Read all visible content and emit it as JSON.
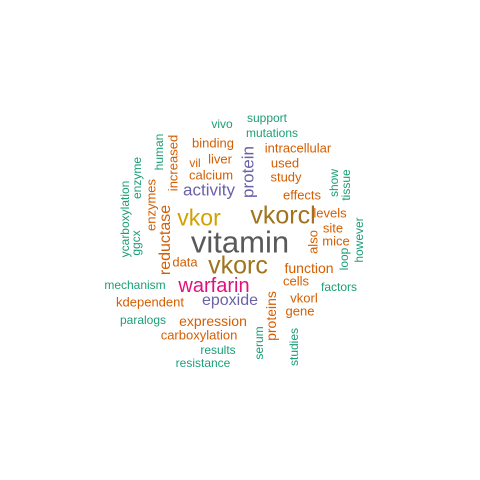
{
  "colors": {
    "gray": "#595959",
    "gold": "#D4A000",
    "brown": "#A0741C",
    "magenta": "#E0117A",
    "purple": "#6A62A8",
    "orange": "#D55E00",
    "green": "#1B9E77"
  },
  "words": [
    {
      "text": "vitamin",
      "color": "gray"
    },
    {
      "text": "vkorcl",
      "color": "brown"
    },
    {
      "text": "vkor",
      "color": "gold"
    },
    {
      "text": "vkorc",
      "color": "brown"
    },
    {
      "text": "warfarin",
      "color": "magenta"
    },
    {
      "text": "activity",
      "color": "purple"
    },
    {
      "text": "epoxide",
      "color": "purple"
    },
    {
      "text": "protein",
      "color": "purple"
    },
    {
      "text": "reductase",
      "color": "orange"
    },
    {
      "text": "expression",
      "color": "orange"
    },
    {
      "text": "proteins",
      "color": "orange"
    },
    {
      "text": "function",
      "color": "orange"
    },
    {
      "text": "carboxylation",
      "color": "orange"
    },
    {
      "text": "kdependent",
      "color": "orange"
    },
    {
      "text": "cells",
      "color": "orange"
    },
    {
      "text": "effects",
      "color": "orange"
    },
    {
      "text": "levels",
      "color": "orange"
    },
    {
      "text": "study",
      "color": "orange"
    },
    {
      "text": "used",
      "color": "orange"
    },
    {
      "text": "intracellular",
      "color": "orange"
    },
    {
      "text": "binding",
      "color": "orange"
    },
    {
      "text": "liver",
      "color": "orange"
    },
    {
      "text": "calcium",
      "color": "orange"
    },
    {
      "text": "increased",
      "color": "orange"
    },
    {
      "text": "enzymes",
      "color": "orange"
    },
    {
      "text": "data",
      "color": "orange"
    },
    {
      "text": "vkorl",
      "color": "orange"
    },
    {
      "text": "gene",
      "color": "orange"
    },
    {
      "text": "also",
      "color": "orange"
    },
    {
      "text": "vil",
      "color": "orange"
    },
    {
      "text": "site",
      "color": "orange"
    },
    {
      "text": "mice",
      "color": "orange"
    },
    {
      "text": "mutations",
      "color": "green"
    },
    {
      "text": "support",
      "color": "green"
    },
    {
      "text": "vivo",
      "color": "green"
    },
    {
      "text": "human",
      "color": "green"
    },
    {
      "text": "enzyme",
      "color": "green"
    },
    {
      "text": "ycarboxylation",
      "color": "green"
    },
    {
      "text": "ggcx",
      "color": "green"
    },
    {
      "text": "mechanism",
      "color": "green"
    },
    {
      "text": "paralogs",
      "color": "green"
    },
    {
      "text": "results",
      "color": "green"
    },
    {
      "text": "resistance",
      "color": "green"
    },
    {
      "text": "serum",
      "color": "green"
    },
    {
      "text": "studies",
      "color": "green"
    },
    {
      "text": "factors",
      "color": "green"
    },
    {
      "text": "loop",
      "color": "green"
    },
    {
      "text": "however",
      "color": "green"
    },
    {
      "text": "show",
      "color": "green"
    },
    {
      "text": "tissue",
      "color": "green"
    }
  ]
}
